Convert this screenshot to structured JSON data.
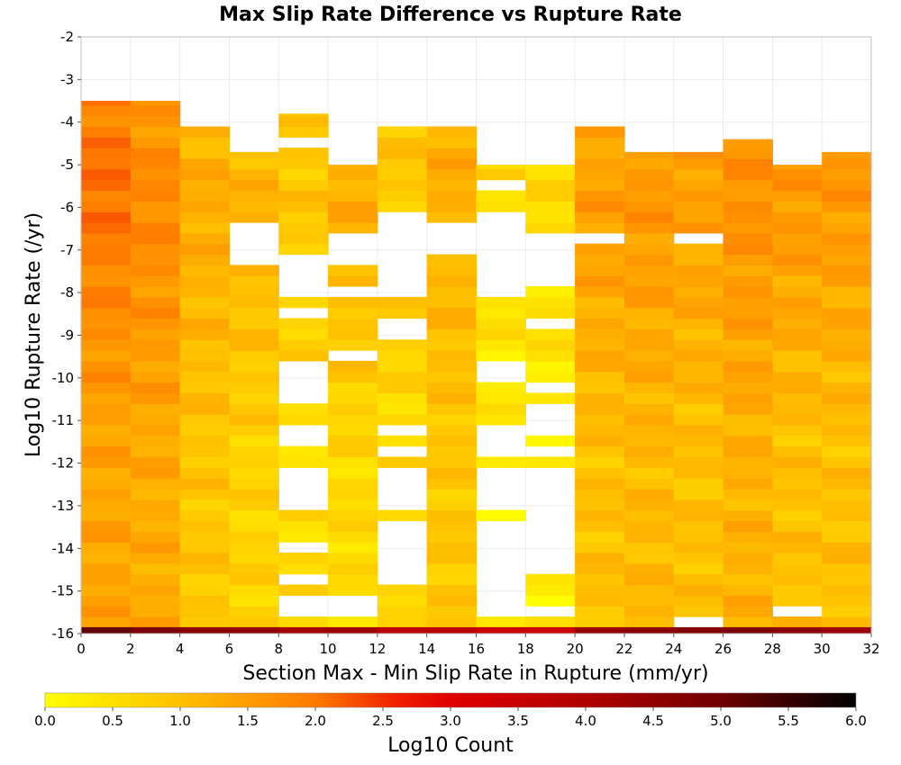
{
  "chart_data": {
    "type": "heatmap",
    "title": "Max Slip Rate Difference vs Rupture Rate",
    "xlabel": "Section Max - Min Slip Rate in Rupture (mm/yr)",
    "ylabel": "Log10 Rupture Rate (/yr)",
    "xlim": [
      0,
      32
    ],
    "ylim": [
      -16,
      -2
    ],
    "x_bin_width": 2,
    "y_bin_height": 0.25,
    "x_ticks": [
      0,
      2,
      4,
      6,
      8,
      10,
      12,
      14,
      16,
      18,
      20,
      22,
      24,
      26,
      28,
      30,
      32
    ],
    "y_ticks": [
      -2,
      -3,
      -4,
      -5,
      -6,
      -7,
      -8,
      -9,
      -10,
      -11,
      -12,
      -13,
      -14,
      -15,
      -16
    ],
    "grid": true,
    "colorbar": {
      "label": "Log10 Count",
      "range": [
        0.0,
        6.0
      ],
      "ticks": [
        "0.0",
        "0.5",
        "1.0",
        "1.5",
        "2.0",
        "2.5",
        "3.0",
        "3.5",
        "4.0",
        "4.5",
        "5.0",
        "5.5",
        "6.0"
      ],
      "stops": [
        {
          "v": 0.0,
          "color": "#ffff00"
        },
        {
          "v": 1.0,
          "color": "#ffc000"
        },
        {
          "v": 2.0,
          "color": "#ff7a00"
        },
        {
          "v": 2.6,
          "color": "#f02000"
        },
        {
          "v": 3.0,
          "color": "#e00000"
        },
        {
          "v": 4.0,
          "color": "#b00000"
        },
        {
          "v": 5.0,
          "color": "#700000"
        },
        {
          "v": 6.0,
          "color": "#000000"
        }
      ]
    },
    "columns": [
      {
        "x0": 0,
        "yTop": -3.5,
        "base": 1.4,
        "peak": 2.1,
        "peakY": -5.5,
        "holes": []
      },
      {
        "x0": 2,
        "yTop": -3.5,
        "base": 1.3,
        "peak": 1.8,
        "peakY": -6.0,
        "holes": []
      },
      {
        "x0": 4,
        "yTop": -4.1,
        "base": 0.9,
        "peak": 1.3,
        "peakY": -6.0,
        "holes": []
      },
      {
        "x0": 6,
        "yTop": -4.7,
        "base": 0.7,
        "peak": 1.2,
        "peakY": -6.0,
        "holes": [
          [
            -7.4,
            -6.4
          ]
        ]
      },
      {
        "x0": 8,
        "yTop": -3.8,
        "base": 0.6,
        "peak": 0.9,
        "peakY": -5.5,
        "holes": [
          [
            -4.7,
            -4.4
          ],
          [
            -6.2,
            -6.0
          ],
          [
            -6.7,
            -6.5
          ],
          [
            -8.1,
            -7.0
          ],
          [
            -8.7,
            -8.4
          ],
          [
            -10.0,
            -9.7
          ],
          [
            -10.5,
            -10.2
          ],
          [
            -11.6,
            -11.1
          ],
          [
            -12.5,
            -12.0
          ],
          [
            -13.0,
            -12.7
          ],
          [
            -14.0,
            -13.8
          ],
          [
            -14.9,
            -14.7
          ],
          [
            -15.7,
            -15.2
          ]
        ]
      },
      {
        "x0": 10,
        "yTop": -5.0,
        "base": 0.6,
        "peak": 1.3,
        "peakY": -5.8,
        "holes": [
          [
            -7.3,
            -6.7
          ],
          [
            -8.1,
            -7.8
          ],
          [
            -9.6,
            -9.3
          ],
          [
            -15.7,
            -15.2
          ]
        ]
      },
      {
        "x0": 12,
        "yTop": -4.1,
        "base": 0.6,
        "peak": 0.9,
        "peakY": -5.0,
        "holes": [
          [
            -8.1,
            -6.2
          ],
          [
            -9.0,
            -8.5
          ],
          [
            -11.3,
            -11.0
          ],
          [
            -11.9,
            -11.6
          ],
          [
            -13.0,
            -12.2
          ],
          [
            -14.9,
            -13.4
          ]
        ]
      },
      {
        "x0": 14,
        "yTop": -4.1,
        "base": 0.9,
        "peak": 1.3,
        "peakY": -5.5,
        "holes": [
          [
            -7.0,
            -6.4
          ]
        ]
      },
      {
        "x0": 16,
        "yTop": -5.0,
        "base": 0.3,
        "peak": 0.6,
        "peakY": -5.6,
        "holes": [
          [
            -5.6,
            -5.3
          ],
          [
            -8.0,
            -6.2
          ],
          [
            -10.0,
            -9.7
          ],
          [
            -11.9,
            -11.0
          ],
          [
            -13.0,
            -12.2
          ],
          [
            -15.7,
            -13.4
          ]
        ]
      },
      {
        "x0": 18,
        "yTop": -5.0,
        "base": 0.3,
        "peak": 0.6,
        "peakY": -6.0,
        "holes": [
          [
            -7.9,
            -6.6
          ],
          [
            -8.9,
            -8.6
          ],
          [
            -10.3,
            -10.0
          ],
          [
            -11.3,
            -10.5
          ],
          [
            -11.9,
            -11.6
          ],
          [
            -14.5,
            -12.2
          ],
          [
            -15.7,
            -15.3
          ]
        ]
      },
      {
        "x0": 20,
        "yTop": -4.1,
        "base": 1.0,
        "peak": 1.5,
        "peakY": -6.0,
        "holes": [
          [
            -6.9,
            -6.6
          ]
        ]
      },
      {
        "x0": 22,
        "yTop": -4.7,
        "base": 1.1,
        "peak": 1.6,
        "peakY": -5.7,
        "holes": []
      },
      {
        "x0": 24,
        "yTop": -4.7,
        "base": 1.0,
        "peak": 1.5,
        "peakY": -5.7,
        "holes": [
          [
            -6.9,
            -6.6
          ],
          [
            -15.9,
            -15.7
          ]
        ]
      },
      {
        "x0": 26,
        "yTop": -4.4,
        "base": 1.2,
        "peak": 1.7,
        "peakY": -5.7,
        "holes": []
      },
      {
        "x0": 28,
        "yTop": -5.0,
        "base": 1.0,
        "peak": 1.6,
        "peakY": -5.6,
        "holes": [
          [
            -15.6,
            -15.3
          ]
        ]
      },
      {
        "x0": 30,
        "yTop": -4.7,
        "base": 1.0,
        "peak": 1.6,
        "peakY": -5.6,
        "holes": []
      }
    ],
    "bottom_row": {
      "y0": -16.0,
      "y1": -15.85,
      "values": [
        5.1,
        4.8,
        4.6,
        4.5,
        4.2,
        4.3,
        3.7,
        3.8,
        3.4,
        3.4,
        4.4,
        4.6,
        4.7,
        4.8,
        4.6,
        4.3
      ]
    }
  }
}
